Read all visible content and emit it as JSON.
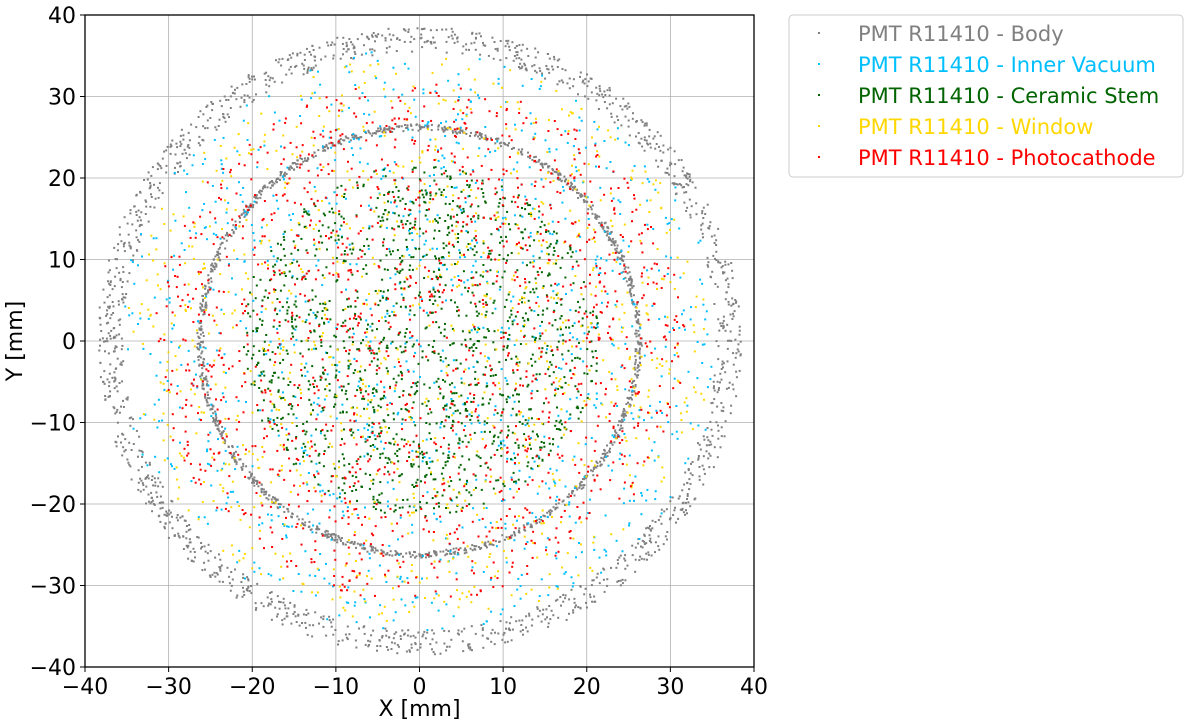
{
  "chart_data": {
    "type": "scatter",
    "xlabel": "X [mm]",
    "ylabel": "Y [mm]",
    "xlim": [
      -40,
      40
    ],
    "ylim": [
      -40,
      40
    ],
    "xticks": [
      -40,
      -30,
      -20,
      -10,
      0,
      10,
      20,
      30,
      40
    ],
    "yticks": [
      -40,
      -30,
      -20,
      -10,
      0,
      10,
      20,
      30,
      40
    ],
    "grid": true,
    "legend_position": "outside-top-right",
    "series": [
      {
        "name": "PMT R11410 - Body",
        "color": "#808080",
        "distribution": "ring",
        "r_min": 35.5,
        "r_max": 38.5,
        "inner_ring": {
          "r_min": 25.8,
          "r_max": 26.6
        }
      },
      {
        "name": "PMT R11410 - Inner Vacuum",
        "color": "#00bfff",
        "distribution": "disk",
        "r_min": 0,
        "r_max": 36
      },
      {
        "name": "PMT R11410 - Ceramic Stem",
        "color": "#006400",
        "distribution": "disk",
        "r_min": 0,
        "r_max": 21.5
      },
      {
        "name": "PMT R11410 - Window",
        "color": "#ffd700",
        "distribution": "disk",
        "r_min": 0,
        "r_max": 35
      },
      {
        "name": "PMT R11410 - Photocathode",
        "color": "#ff0000",
        "distribution": "disk",
        "r_min": 0,
        "r_max": 32
      }
    ]
  }
}
